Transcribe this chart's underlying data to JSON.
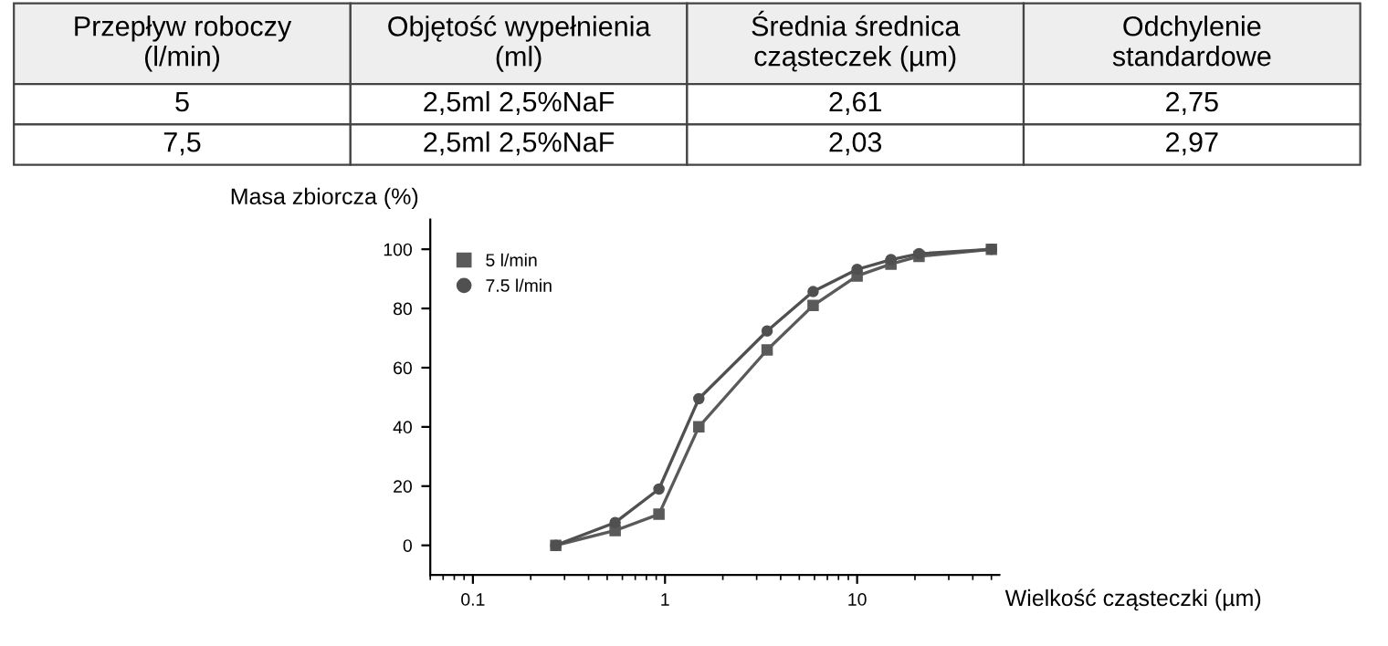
{
  "chart_data": {
    "type": "line",
    "xlabel": "Wielkość cząsteczki (µm)",
    "ylabel": "Masa zbiorcza (%)",
    "annotations": [
      "Przepływ roboczy\n(l/min)",
      "Objętość wypełnienia\n(ml)",
      "Średnia średnica\ncząsteczek (µm)",
      "Odchylenie\nstandardowe",
      "5",
      "2,5ml 2,5%NaF",
      "2,61",
      "2,75",
      "7,5",
      "2,5ml 2,5%NaF",
      "2,03",
      "2,97"
    ],
    "log": "x",
    "xlim": [
      0.06,
      55
    ],
    "xticks": [
      0.1,
      1,
      10
    ],
    "ylim": [
      -10,
      110
    ],
    "yticks": [
      0,
      20,
      40,
      60,
      80,
      100
    ],
    "grid": false,
    "legend": "top left",
    "line_style": "solid",
    "series": [
      {
        "name": "5 l/min",
        "color": "#5a5a5a",
        "marker": "square",
        "x": [
          0.27,
          0.55,
          0.93,
          1.5,
          3.4,
          5.9,
          10,
          15,
          21,
          50
        ],
        "values": [
          0,
          5,
          10.5,
          40,
          66,
          81,
          91,
          95,
          97.6,
          100
        ]
      },
      {
        "name": "7.5 l/min",
        "color": "#505050",
        "marker": "circle",
        "x": [
          0.27,
          0.55,
          0.93,
          1.5,
          3.4,
          5.9,
          10,
          15,
          21,
          50
        ],
        "values": [
          0,
          7.7,
          19,
          49.5,
          72.4,
          85.7,
          93.2,
          96.5,
          98.5,
          100
        ]
      }
    ]
  }
}
